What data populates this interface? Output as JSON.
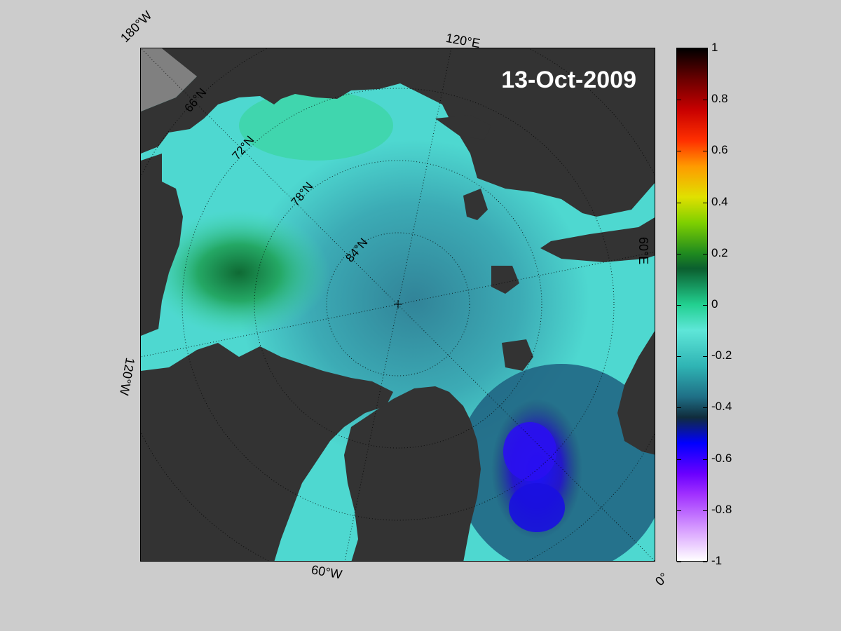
{
  "date": "13-Oct-2009",
  "edge_labels": {
    "top_left": "180°W",
    "top": "120°E",
    "right": "60°E",
    "left": "120°W",
    "bottom": "60°W",
    "bottom_right": "0°"
  },
  "latitude_labels": [
    "66°N",
    "72°N",
    "78°N",
    "84°N"
  ],
  "colorbar": {
    "ticks": [
      "1",
      "0.8",
      "0.6",
      "0.4",
      "0.2",
      "0",
      "-0.2",
      "-0.4",
      "-0.6",
      "-0.8",
      "-1"
    ],
    "min": -1,
    "max": 1
  },
  "colors": {
    "land": "#333333",
    "background": "#cccccc",
    "ocean_low": "#2a6f86",
    "ocean_mid": "#4ed8d0",
    "ocean_high": "#2ad48e",
    "anomaly_neg": "#1c1ce0"
  }
}
